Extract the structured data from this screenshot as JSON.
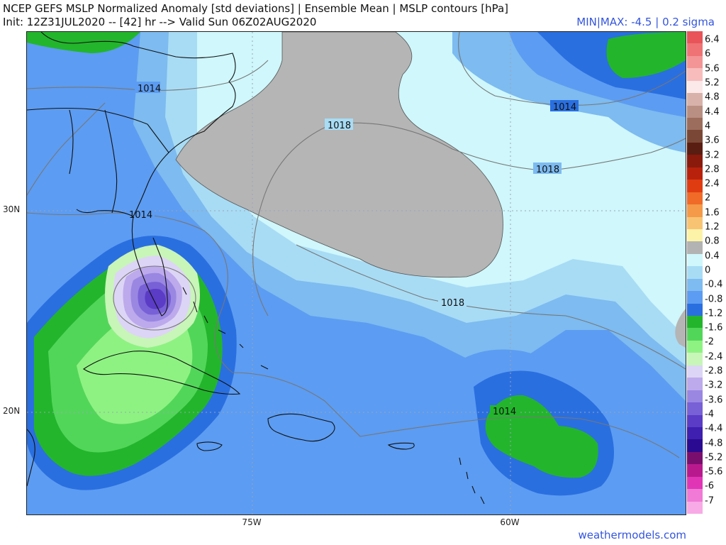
{
  "header": {
    "title": "NCEP GEFS MSLP Normalized Anomaly [std deviations] | Ensemble Mean | MSLP contours [hPa]",
    "subtitle": "Init: 12Z31JUL2020 -- [42] hr --> Valid Sun 06Z02AUG2020",
    "minmax": "MIN|MAX: -4.5 | 0.2 sigma"
  },
  "map": {
    "lat_labels": [
      "30N",
      "20N"
    ],
    "lon_labels": [
      "75W",
      "60W"
    ],
    "contour_labels": [
      "1014",
      "1018",
      "1014",
      "1018",
      "1014",
      "1018",
      "1014"
    ],
    "colors": {
      "ocean_base": "#5c9cf2",
      "land_stroke": "#111111",
      "contour_line": "#7a7a7a",
      "gray_region": "#b5b5b5"
    }
  },
  "colorbar": {
    "labels": [
      "6.4",
      "6",
      "5.6",
      "5.2",
      "4.8",
      "4.4",
      "4",
      "3.6",
      "3.2",
      "2.8",
      "2.4",
      "2",
      "1.6",
      "1.2",
      "0.8",
      "0.4",
      "0",
      "-0.4",
      "-0.8",
      "-1.2",
      "-1.6",
      "-2",
      "-2.4",
      "-2.8",
      "-3.2",
      "-3.6",
      "-4",
      "-4.4",
      "-4.8",
      "-5.2",
      "-5.6",
      "-6",
      "-7"
    ],
    "colors": [
      "#e8545a",
      "#ef7375",
      "#f39596",
      "#f8bcbc",
      "#fbe8e8",
      "#d8b2aa",
      "#b88f82",
      "#9c6c5c",
      "#7a4736",
      "#5a1d12",
      "#8a1a0c",
      "#b8220c",
      "#e03c12",
      "#f06a28",
      "#f49a48",
      "#f8c474",
      "#fdf3a8",
      "#b3b3b3",
      "#cff7fc",
      "#a8dcf5",
      "#7dbbf0",
      "#5c9cf2",
      "#2a6fe0",
      "#23b52c",
      "#52d65a",
      "#8ef282",
      "#c8f5b8",
      "#ddd5f5",
      "#bcaaec",
      "#9987e2",
      "#7860d6",
      "#5a3cc6",
      "#3e1fb0",
      "#2a0a90",
      "#7a0e6e",
      "#b81a8e",
      "#e036b6",
      "#f07ad6",
      "#f8aae6"
    ]
  },
  "credit": "weathermodels.com"
}
